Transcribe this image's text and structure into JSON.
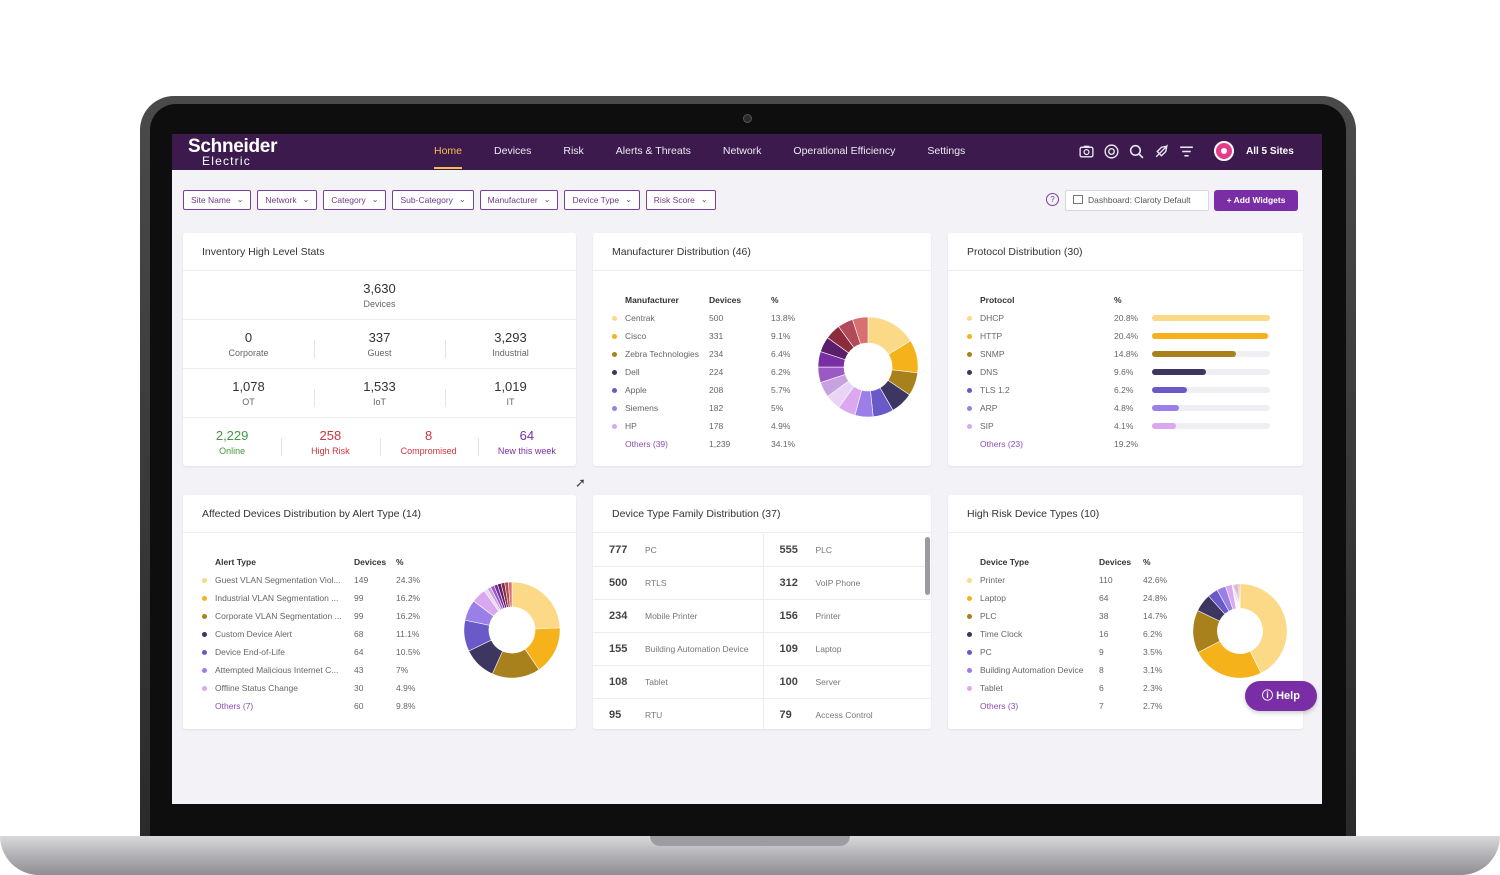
{
  "app": {
    "logo_line1": "Schneider",
    "logo_line2": "Electric",
    "sites": "All 5 Sites"
  },
  "nav": [
    "Home",
    "Devices",
    "Risk",
    "Alerts & Threats",
    "Network",
    "Operational Efficiency",
    "Settings"
  ],
  "filters": [
    "Site Name",
    "Network",
    "Category",
    "Sub-Category",
    "Manufacturer",
    "Device Type",
    "Risk Score"
  ],
  "toolbar": {
    "dashboard": "Dashboard: Claroty Default",
    "add_widgets": "+ Add Widgets",
    "help_q": "?"
  },
  "inventory": {
    "title": "Inventory High Level Stats",
    "total": {
      "value": "3,630",
      "label": "Devices"
    },
    "row1": [
      {
        "value": "0",
        "label": "Corporate"
      },
      {
        "value": "337",
        "label": "Guest"
      },
      {
        "value": "3,293",
        "label": "Industrial"
      }
    ],
    "row2": [
      {
        "value": "1,078",
        "label": "OT"
      },
      {
        "value": "1,533",
        "label": "IoT"
      },
      {
        "value": "1,019",
        "label": "IT"
      }
    ],
    "row3": [
      {
        "value": "2,229",
        "label": "Online"
      },
      {
        "value": "258",
        "label": "High Risk"
      },
      {
        "value": "8",
        "label": "Compromised"
      },
      {
        "value": "64",
        "label": "New this week"
      }
    ]
  },
  "manufacturer": {
    "title": "Manufacturer Distribution (46)",
    "headers": [
      "Manufacturer",
      "Devices",
      "%"
    ],
    "rows": [
      {
        "name": "Centrak",
        "devices": "500",
        "pct": "13.8%",
        "color": "#fcd986"
      },
      {
        "name": "Cisco",
        "devices": "331",
        "pct": "9.1%",
        "color": "#f6b21a"
      },
      {
        "name": "Zebra Technologies",
        "devices": "234",
        "pct": "6.4%",
        "color": "#a8801c"
      },
      {
        "name": "Dell",
        "devices": "224",
        "pct": "6.2%",
        "color": "#3d3660"
      },
      {
        "name": "Apple",
        "devices": "208",
        "pct": "5.7%",
        "color": "#6a5ac9"
      },
      {
        "name": "Siemens",
        "devices": "182",
        "pct": "5%",
        "color": "#9b7fe8"
      },
      {
        "name": "HP",
        "devices": "178",
        "pct": "4.9%",
        "color": "#dba8f0"
      },
      {
        "name": "Others (39)",
        "devices": "1,239",
        "pct": "34.1%",
        "color": ""
      }
    ]
  },
  "protocol": {
    "title": "Protocol Distribution (30)",
    "headers": [
      "Protocol",
      "%"
    ],
    "rows": [
      {
        "name": "DHCP",
        "pct": "20.8%",
        "fill": 1.0,
        "color": "#fcd986"
      },
      {
        "name": "HTTP",
        "pct": "20.4%",
        "fill": 0.98,
        "color": "#f6b21a"
      },
      {
        "name": "SNMP",
        "pct": "14.8%",
        "fill": 0.71,
        "color": "#a8801c"
      },
      {
        "name": "DNS",
        "pct": "9.6%",
        "fill": 0.46,
        "color": "#3d3660"
      },
      {
        "name": "TLS 1.2",
        "pct": "6.2%",
        "fill": 0.3,
        "color": "#6a5ac9"
      },
      {
        "name": "ARP",
        "pct": "4.8%",
        "fill": 0.23,
        "color": "#9b7fe8"
      },
      {
        "name": "SIP",
        "pct": "4.1%",
        "fill": 0.2,
        "color": "#dba8f0"
      },
      {
        "name": "Others (23)",
        "pct": "19.2%",
        "fill": 0,
        "color": ""
      }
    ]
  },
  "alerts": {
    "title": "Affected Devices Distribution by Alert Type (14)",
    "headers": [
      "Alert Type",
      "Devices",
      "%"
    ],
    "rows": [
      {
        "name": "Guest VLAN Segmentation Viol...",
        "devices": "149",
        "pct": "24.3%",
        "color": "#fcd986"
      },
      {
        "name": "Industrial VLAN Segmentation ...",
        "devices": "99",
        "pct": "16.2%",
        "color": "#f6b21a"
      },
      {
        "name": "Corporate VLAN Segmentation ...",
        "devices": "99",
        "pct": "16.2%",
        "color": "#a8801c"
      },
      {
        "name": "Custom Device Alert",
        "devices": "68",
        "pct": "11.1%",
        "color": "#3d3660"
      },
      {
        "name": "Device End-of-Life",
        "devices": "64",
        "pct": "10.5%",
        "color": "#6a5ac9"
      },
      {
        "name": "Attempted Malicious Internet C...",
        "devices": "43",
        "pct": "7%",
        "color": "#9b7fe8"
      },
      {
        "name": "Offline Status Change",
        "devices": "30",
        "pct": "4.9%",
        "color": "#dba8f0"
      },
      {
        "name": "Others (7)",
        "devices": "60",
        "pct": "9.8%",
        "color": ""
      }
    ]
  },
  "device_family": {
    "title": "Device Type Family Distribution (37)",
    "rows": [
      [
        {
          "num": "777",
          "label": "PC"
        },
        {
          "num": "555",
          "label": "PLC"
        }
      ],
      [
        {
          "num": "500",
          "label": "RTLS"
        },
        {
          "num": "312",
          "label": "VoIP Phone"
        }
      ],
      [
        {
          "num": "234",
          "label": "Mobile Printer"
        },
        {
          "num": "156",
          "label": "Printer"
        }
      ],
      [
        {
          "num": "155",
          "label": "Building Automation Device"
        },
        {
          "num": "109",
          "label": "Laptop"
        }
      ],
      [
        {
          "num": "108",
          "label": "Tablet"
        },
        {
          "num": "100",
          "label": "Server"
        }
      ],
      [
        {
          "num": "95",
          "label": "RTU"
        },
        {
          "num": "79",
          "label": "Access Control"
        }
      ]
    ]
  },
  "high_risk": {
    "title": "High Risk Device Types (10)",
    "headers": [
      "Device Type",
      "Devices",
      "%"
    ],
    "rows": [
      {
        "name": "Printer",
        "devices": "110",
        "pct": "42.6%",
        "color": "#fcd986"
      },
      {
        "name": "Laptop",
        "devices": "64",
        "pct": "24.8%",
        "color": "#f6b21a"
      },
      {
        "name": "PLC",
        "devices": "38",
        "pct": "14.7%",
        "color": "#a8801c"
      },
      {
        "name": "Time Clock",
        "devices": "16",
        "pct": "6.2%",
        "color": "#3d3660"
      },
      {
        "name": "PC",
        "devices": "9",
        "pct": "3.5%",
        "color": "#6a5ac9"
      },
      {
        "name": "Building Automation Device",
        "devices": "8",
        "pct": "3.1%",
        "color": "#9b7fe8"
      },
      {
        "name": "Tablet",
        "devices": "6",
        "pct": "2.3%",
        "color": "#dba8f0"
      },
      {
        "name": "Others (3)",
        "devices": "7",
        "pct": "2.7%",
        "color": ""
      }
    ]
  },
  "help": {
    "label": "Help"
  }
}
